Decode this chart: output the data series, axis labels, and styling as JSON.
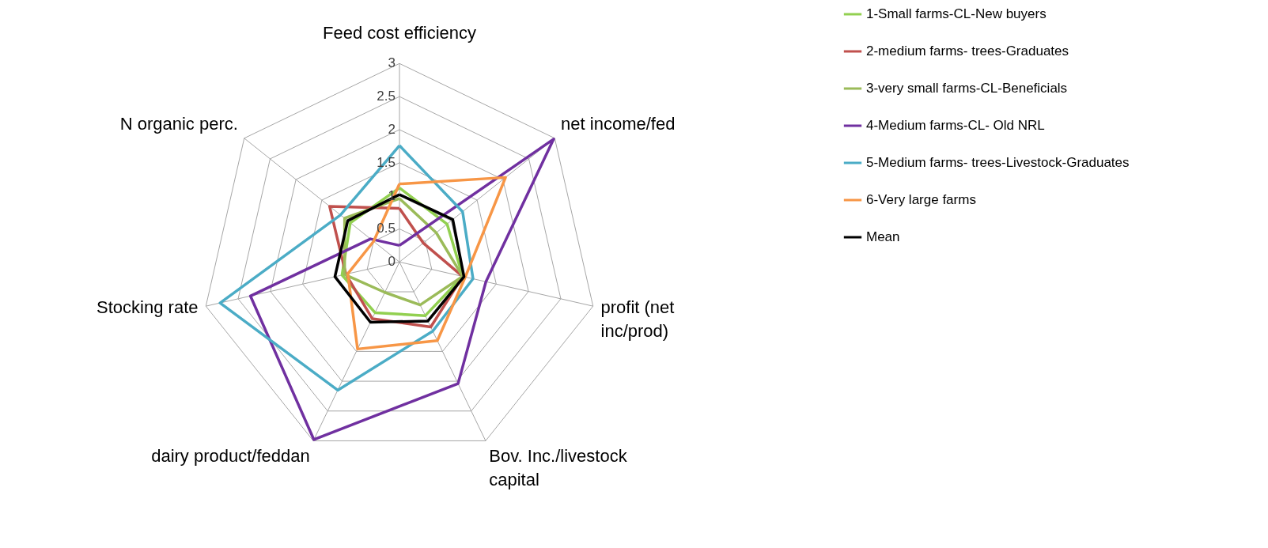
{
  "chart_data": {
    "type": "radar",
    "categories": [
      "Feed cost efficiency",
      "net income/fed",
      "profit (net inc/prod)",
      "Bov. Inc./livestock capital",
      "dairy product/feddan",
      "Stocking rate",
      "N organic perc."
    ],
    "ylim": [
      0,
      3
    ],
    "yticks": [
      0,
      0.5,
      1,
      1.5,
      2,
      2.5,
      3
    ],
    "grid": true,
    "legend": "right",
    "line_style": "solid",
    "marker": "none",
    "series": [
      {
        "name": "1-Small farms-CL-New buyers",
        "color": "#92d050",
        "values": [
          1.12,
          0.92,
          0.98,
          0.9,
          0.85,
          0.89,
          0.95
        ]
      },
      {
        "name": "2-medium farms- trees-Graduates",
        "color": "#c0504d",
        "values": [
          0.81,
          0.46,
          0.98,
          1.09,
          0.95,
          0.83,
          1.35
        ]
      },
      {
        "name": "3-very small farms-CL-Beneficials",
        "color": "#9bbb59",
        "values": [
          0.96,
          0.71,
          0.98,
          0.72,
          0.51,
          0.85,
          1.06
        ]
      },
      {
        "name": "4-Medium farms-CL- Old NRL",
        "color": "#7030a0",
        "values": [
          0.25,
          2.98,
          1.34,
          2.04,
          2.98,
          2.31,
          0.56
        ]
      },
      {
        "name": "5-Medium farms- trees-Livestock-Graduates",
        "color": "#4bacc6",
        "values": [
          1.76,
          1.22,
          1.14,
          1.16,
          2.15,
          2.78,
          1.14
        ]
      },
      {
        "name": "6-Very large farms",
        "color": "#f79646",
        "values": [
          1.18,
          2.05,
          1.02,
          1.32,
          1.46,
          0.8,
          0.5
        ]
      },
      {
        "name": "Mean",
        "color": "#000000",
        "values": [
          1.02,
          1.03,
          1.0,
          0.99,
          1.01,
          1.0,
          1.0
        ]
      }
    ]
  }
}
